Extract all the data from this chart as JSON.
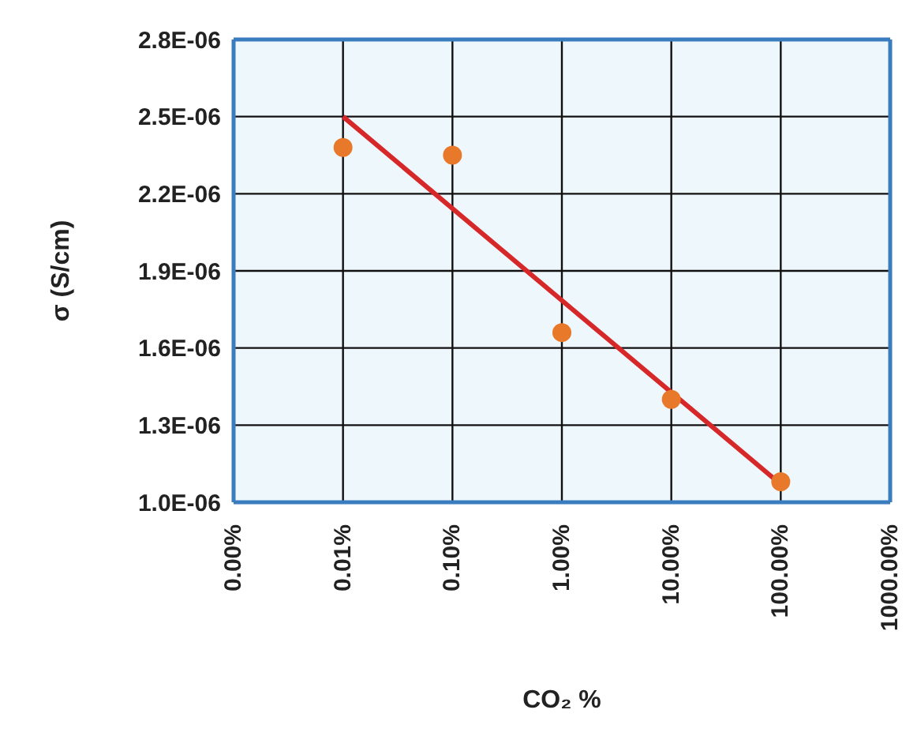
{
  "chart_data": {
    "type": "scatter",
    "xlabel": "CO₂ %",
    "ylabel": "σ (S/cm)",
    "log": "x",
    "grid": true,
    "xlim": [
      0.001,
      1000
    ],
    "xticks": [
      {
        "value": 0.001,
        "label": "0.00%"
      },
      {
        "value": 0.01,
        "label": "0.01%"
      },
      {
        "value": 0.1,
        "label": "0.10%"
      },
      {
        "value": 1,
        "label": "1.00%"
      },
      {
        "value": 10,
        "label": "10.00%"
      },
      {
        "value": 100,
        "label": "100.00%"
      },
      {
        "value": 1000,
        "label": "1000.00%"
      }
    ],
    "ylim": [
      1e-06,
      2.8e-06
    ],
    "yticks": [
      {
        "value": 1e-06,
        "label": "1.0E-06"
      },
      {
        "value": 1.3e-06,
        "label": "1.3E-06"
      },
      {
        "value": 1.6e-06,
        "label": "1.6E-06"
      },
      {
        "value": 1.9e-06,
        "label": "1.9E-06"
      },
      {
        "value": 2.2e-06,
        "label": "2.2E-06"
      },
      {
        "value": 2.5e-06,
        "label": "2.5E-06"
      },
      {
        "value": 2.8e-06,
        "label": "2.8E-06"
      }
    ],
    "series": [
      {
        "color": "#e8782a",
        "marker": "circle",
        "x": [
          0.01,
          0.1,
          1,
          10,
          100
        ],
        "values": [
          2.38e-06,
          2.35e-06,
          1.66e-06,
          1.4e-06,
          1.08e-06
        ]
      },
      {
        "type": "line",
        "color": "#d62828",
        "marker": "none",
        "line_style": "solid",
        "x": [
          0.01,
          100
        ],
        "values": [
          2.5e-06,
          1.07e-06
        ]
      }
    ]
  }
}
